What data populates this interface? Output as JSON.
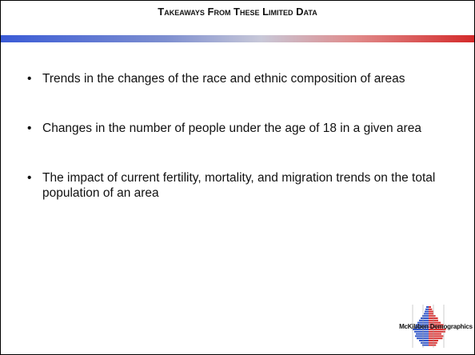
{
  "header": {
    "title": "Takeaways From These Limited Data"
  },
  "bullets": [
    "Trends in the changes of the race and ethnic composition of areas",
    "Changes in the number of people under the age of 18 in a given area",
    "The impact of current fertility, mortality, and migration trends on the total population of an area"
  ],
  "logo": {
    "text": "McKibben Demographics"
  }
}
